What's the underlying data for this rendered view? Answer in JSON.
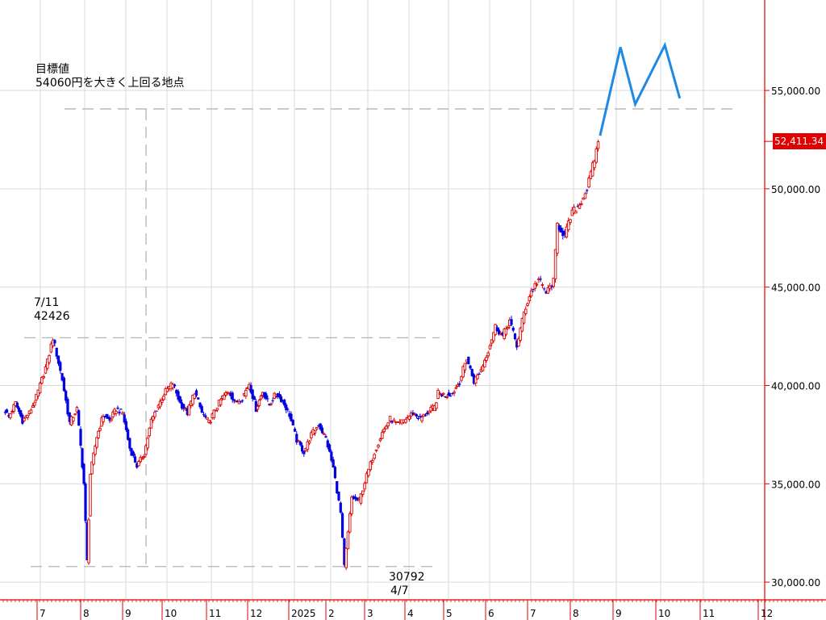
{
  "chart_data": {
    "type": "candlestick",
    "title": "",
    "xlabel": "",
    "ylabel": "",
    "ylim": [
      29100,
      59600
    ],
    "grid": true,
    "y_ticks": [
      30000,
      35000,
      40000,
      45000,
      50000,
      55000
    ],
    "y_tick_labels": [
      "30,000.00",
      "35,000.00",
      "40,000.00",
      "45,000.00",
      "50,000.00",
      "55,000.00"
    ],
    "x_tick_labels": [
      "7",
      "8",
      "9",
      "10",
      "11",
      "12",
      "2025",
      "2",
      "3",
      "4",
      "5",
      "6",
      "7",
      "8",
      "9",
      "10",
      "11",
      "12"
    ],
    "last_price_label": "52,411.34",
    "last_price": 52411,
    "up_color": "#e00000",
    "down_color": "#0000e0",
    "forecast_color": "#1e88e5",
    "path_points": [
      [
        38700,
        0
      ],
      [
        38400,
        2
      ],
      [
        39100,
        6
      ],
      [
        38200,
        10
      ],
      [
        38600,
        14
      ],
      [
        39400,
        18
      ],
      [
        41200,
        24
      ],
      [
        42426,
        27
      ],
      [
        40300,
        32
      ],
      [
        38100,
        36
      ],
      [
        38800,
        40
      ],
      [
        35000,
        44
      ],
      [
        31050,
        46
      ],
      [
        35500,
        48
      ],
      [
        37400,
        52
      ],
      [
        38500,
        56
      ],
      [
        38200,
        60
      ],
      [
        38800,
        64
      ],
      [
        38600,
        68
      ],
      [
        36800,
        72
      ],
      [
        35900,
        76
      ],
      [
        36500,
        80
      ],
      [
        38200,
        84
      ],
      [
        39000,
        88
      ],
      [
        39700,
        92
      ],
      [
        40100,
        96
      ],
      [
        39100,
        100
      ],
      [
        38600,
        104
      ],
      [
        39700,
        108
      ],
      [
        38600,
        112
      ],
      [
        38100,
        116
      ],
      [
        38800,
        120
      ],
      [
        39400,
        124
      ],
      [
        39700,
        128
      ],
      [
        39100,
        132
      ],
      [
        39400,
        136
      ],
      [
        40100,
        140
      ],
      [
        38800,
        144
      ],
      [
        39700,
        148
      ],
      [
        39000,
        152
      ],
      [
        39600,
        156
      ],
      [
        39200,
        160
      ],
      [
        38500,
        164
      ],
      [
        37200,
        168
      ],
      [
        36600,
        172
      ],
      [
        37500,
        176
      ],
      [
        38000,
        180
      ],
      [
        37300,
        184
      ],
      [
        35800,
        188
      ],
      [
        33500,
        192
      ],
      [
        30792,
        194
      ],
      [
        32500,
        196
      ],
      [
        34300,
        198
      ],
      [
        34100,
        202
      ],
      [
        35400,
        206
      ],
      [
        36600,
        210
      ],
      [
        37600,
        214
      ],
      [
        38300,
        218
      ],
      [
        38000,
        222
      ],
      [
        38300,
        226
      ],
      [
        38600,
        230
      ],
      [
        38300,
        234
      ],
      [
        38600,
        238
      ],
      [
        38900,
        242
      ],
      [
        39600,
        244
      ],
      [
        39500,
        248
      ],
      [
        39600,
        252
      ],
      [
        40200,
        256
      ],
      [
        41400,
        260
      ],
      [
        40200,
        264
      ],
      [
        40800,
        268
      ],
      [
        41800,
        272
      ],
      [
        43000,
        276
      ],
      [
        42500,
        280
      ],
      [
        43300,
        284
      ],
      [
        42000,
        288
      ],
      [
        43700,
        292
      ],
      [
        44800,
        296
      ],
      [
        45400,
        300
      ],
      [
        44700,
        304
      ],
      [
        45300,
        308
      ],
      [
        48200,
        310
      ],
      [
        47600,
        314
      ],
      [
        48800,
        318
      ],
      [
        49200,
        322
      ],
      [
        50000,
        326
      ],
      [
        51500,
        330
      ],
      [
        52411,
        332
      ]
    ],
    "series": [
      {
        "type": "forecast",
        "points": [
          [
            52700,
            333
          ],
          [
            57200,
            344
          ],
          [
            54300,
            352
          ],
          [
            57300,
            368
          ],
          [
            54600,
            376
          ]
        ]
      }
    ],
    "annotations": [
      {
        "id": "target",
        "lines": [
          "目標値",
          "54060円を大きく上回る地点"
        ],
        "value": 54060
      },
      {
        "id": "high",
        "lines": [
          "7/11",
          "42426"
        ],
        "value": 42426
      },
      {
        "id": "low",
        "lines": [
          "30792",
          "4/7"
        ],
        "value": 30792
      }
    ]
  }
}
